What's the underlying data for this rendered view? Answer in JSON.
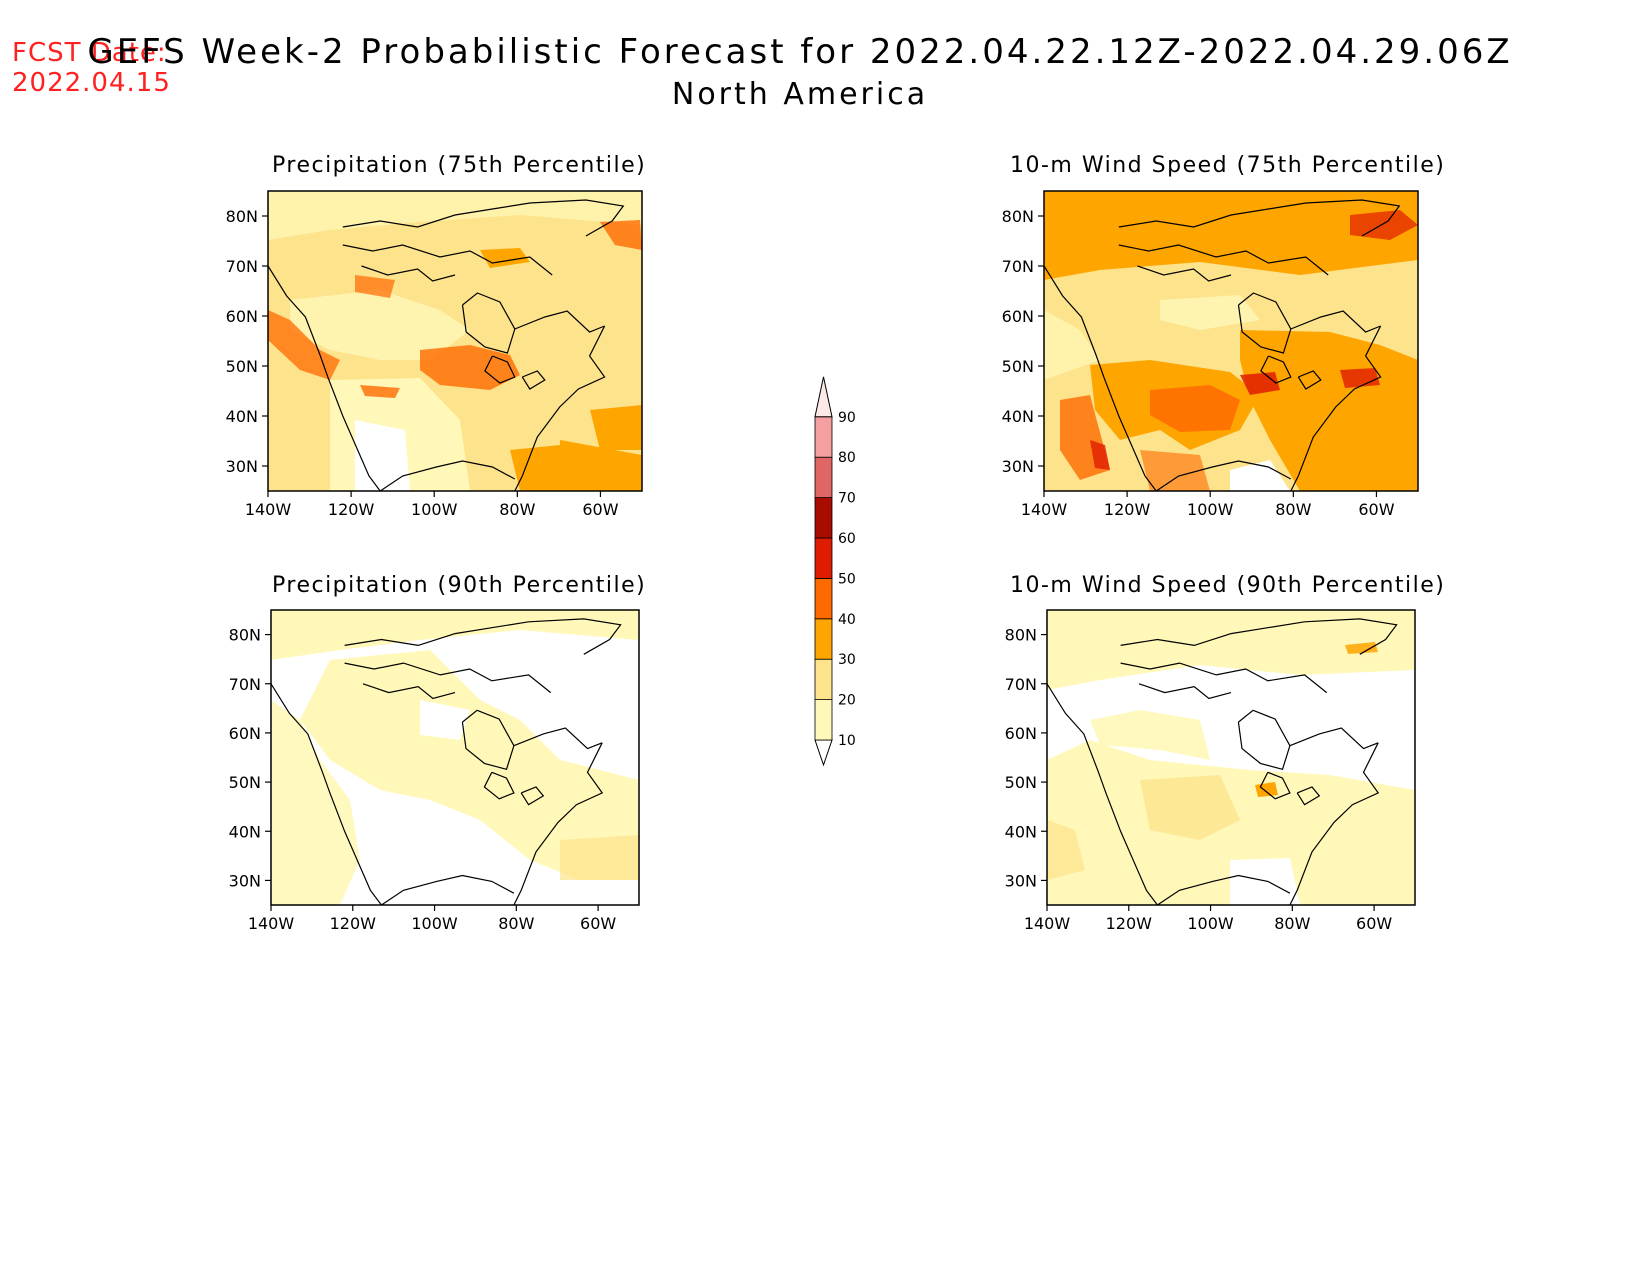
{
  "header": {
    "fcst_label": "FCST Date:",
    "fcst_date": "2022.04.15",
    "title": "GEFS Week-2 Probabilistic Forecast for 2022.04.22.12Z-2022.04.29.06Z",
    "subtitle": "North America"
  },
  "lat_ticks": [
    "80N",
    "70N",
    "60N",
    "50N",
    "40N",
    "30N"
  ],
  "lon_ticks": [
    "140W",
    "120W",
    "100W",
    "80W",
    "60W"
  ],
  "maps": [
    {
      "title": "Precipitation (75th Percentile)",
      "field": "precip_p75"
    },
    {
      "title": "10-m Wind Speed (75th Percentile)",
      "field": "wind_p75"
    },
    {
      "title": "Precipitation (90th Percentile)",
      "field": "precip_p90"
    },
    {
      "title": "10-m Wind Speed (90th Percentile)",
      "field": "wind_p90"
    }
  ],
  "colorbar": {
    "levels": [
      "10",
      "20",
      "30",
      "40",
      "50",
      "60",
      "70",
      "80",
      "90"
    ],
    "colors": [
      "#fff8b8",
      "#fde38c",
      "#ffa500",
      "#ff6a00",
      "#e01c00",
      "#a80b00",
      "#e06666",
      "#f4a0a0",
      "#fde8e8"
    ],
    "background": "#ffffff"
  },
  "theme": {
    "fcst_color": "#ff2020",
    "coast_color": "#000000"
  }
}
